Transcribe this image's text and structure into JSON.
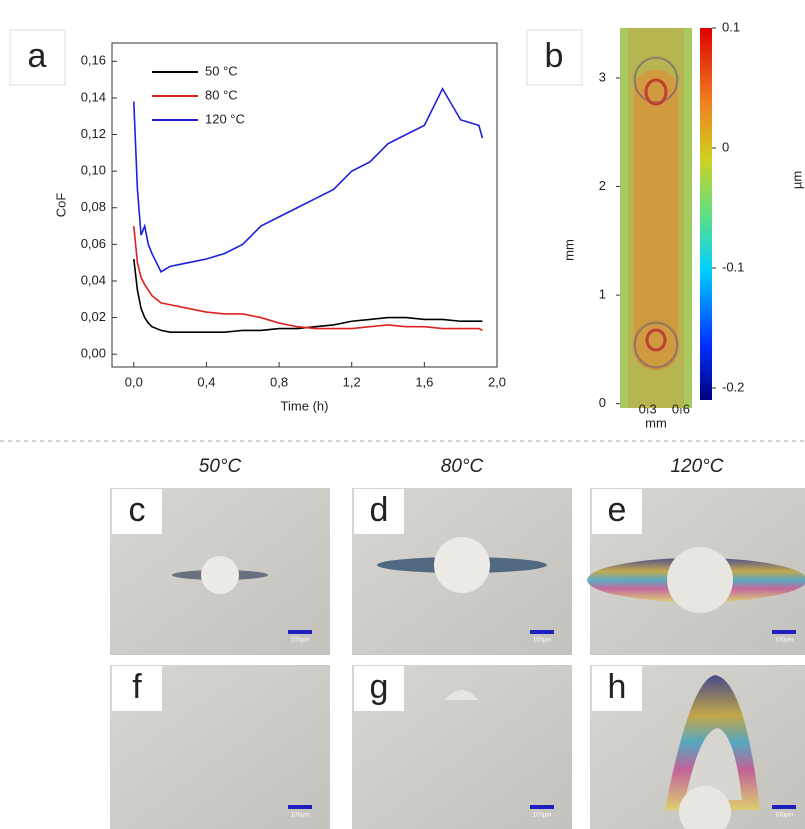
{
  "chart_data": [
    {
      "type": "line",
      "label": "a",
      "xlabel": "Time (h)",
      "ylabel": "CoF",
      "x": [
        0,
        0.02,
        0.04,
        0.06,
        0.08,
        0.1,
        0.15,
        0.2,
        0.3,
        0.4,
        0.5,
        0.6,
        0.7,
        0.8,
        0.9,
        1.0,
        1.1,
        1.2,
        1.3,
        1.4,
        1.5,
        1.6,
        1.7,
        1.8,
        1.9,
        1.92
      ],
      "series": [
        {
          "name": "50 °C",
          "color": "#000000",
          "values": [
            0.052,
            0.035,
            0.025,
            0.02,
            0.017,
            0.015,
            0.013,
            0.012,
            0.012,
            0.012,
            0.012,
            0.013,
            0.013,
            0.014,
            0.014,
            0.015,
            0.016,
            0.018,
            0.019,
            0.02,
            0.02,
            0.019,
            0.019,
            0.018,
            0.018,
            0.018
          ]
        },
        {
          "name": "80 °C",
          "color": "#e02020",
          "values": [
            0.07,
            0.05,
            0.042,
            0.038,
            0.035,
            0.032,
            0.028,
            0.027,
            0.025,
            0.023,
            0.022,
            0.022,
            0.02,
            0.017,
            0.015,
            0.014,
            0.014,
            0.014,
            0.015,
            0.016,
            0.015,
            0.015,
            0.014,
            0.014,
            0.014,
            0.013
          ]
        },
        {
          "name": "120 °C",
          "color": "#1f1fe0",
          "values": [
            0.138,
            0.09,
            0.065,
            0.07,
            0.06,
            0.055,
            0.045,
            0.048,
            0.05,
            0.052,
            0.055,
            0.06,
            0.07,
            0.075,
            0.08,
            0.085,
            0.09,
            0.1,
            0.105,
            0.115,
            0.12,
            0.125,
            0.145,
            0.128,
            0.125,
            0.118
          ]
        }
      ],
      "xlim": [
        -0.12,
        2.0
      ],
      "xticks": [
        {
          "value": 0,
          "label": "0,0"
        },
        {
          "value": 0.4,
          "label": "0,4"
        },
        {
          "value": 0.8,
          "label": "0,8"
        },
        {
          "value": 1.2,
          "label": "1,2"
        },
        {
          "value": 1.6,
          "label": "1,6"
        },
        {
          "value": 2.0,
          "label": "2,0"
        }
      ],
      "ylim": [
        -0.007,
        0.17
      ],
      "yticks": [
        {
          "value": 0,
          "label": "0,00"
        },
        {
          "value": 0.02,
          "label": "0,02"
        },
        {
          "value": 0.04,
          "label": "0,04"
        },
        {
          "value": 0.06,
          "label": "0,06"
        },
        {
          "value": 0.08,
          "label": "0,08"
        },
        {
          "value": 0.1,
          "label": "0,10"
        },
        {
          "value": 0.12,
          "label": "0,12"
        },
        {
          "value": 0.14,
          "label": "0,14"
        },
        {
          "value": 0.16,
          "label": "0,16"
        }
      ]
    },
    {
      "type": "heatmap",
      "label": "b",
      "xlabel": "mm",
      "ylabel": "mm",
      "xlim": [
        0.05,
        0.7
      ],
      "xticks": [
        0.3,
        0.6
      ],
      "ylim": [
        -0.04,
        3.46
      ],
      "yticks": [
        0,
        1,
        2,
        3
      ],
      "colorbar": {
        "label": "µm",
        "lim": [
          -0.21,
          0.1
        ],
        "ticks": [
          0.1,
          0,
          -0.1,
          -0.2
        ]
      }
    }
  ],
  "micrographs": {
    "columns": [
      "50°C",
      "80°C",
      "120°C"
    ],
    "panels": [
      "c",
      "d",
      "e",
      "f",
      "g",
      "h"
    ],
    "scale_bar": "100µm"
  }
}
